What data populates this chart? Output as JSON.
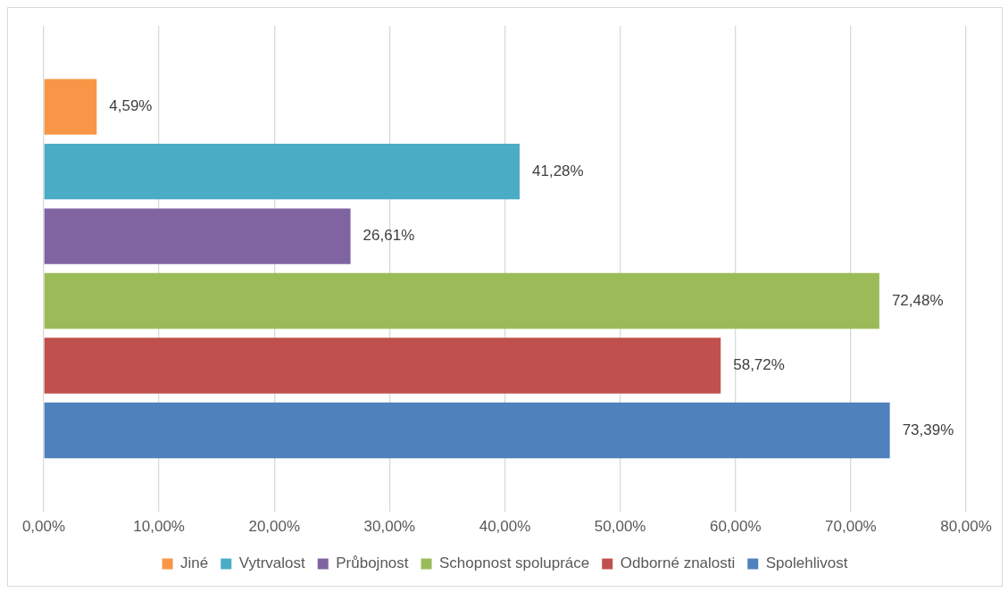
{
  "chart_data": {
    "type": "bar",
    "orientation": "horizontal",
    "categories": [
      null
    ],
    "series": [
      {
        "name": "Jiné",
        "color": "#f79646",
        "values": [
          4.59
        ],
        "value_labels": [
          "4,59%"
        ]
      },
      {
        "name": "Vytrvalost",
        "color": "#4bacc6",
        "values": [
          41.28
        ],
        "value_labels": [
          "41,28%"
        ]
      },
      {
        "name": "Průbojnost",
        "color": "#8064a2",
        "values": [
          26.61
        ],
        "value_labels": [
          "26,61%"
        ]
      },
      {
        "name": "Schopnost spolupráce",
        "color": "#9bbb59",
        "values": [
          72.48
        ],
        "value_labels": [
          "72,48%"
        ]
      },
      {
        "name": "Odborné znalosti",
        "color": "#c0504d",
        "values": [
          58.72
        ],
        "value_labels": [
          "58,72%"
        ]
      },
      {
        "name": "Spolehlivost",
        "color": "#4f81bd",
        "values": [
          73.39
        ],
        "value_labels": [
          "73,39%"
        ]
      }
    ],
    "xlim": [
      0,
      80
    ],
    "xticks": [
      {
        "value": 0,
        "label": "0,00%"
      },
      {
        "value": 10,
        "label": "10,00%"
      },
      {
        "value": 20,
        "label": "20,00%"
      },
      {
        "value": 30,
        "label": "30,00%"
      },
      {
        "value": 40,
        "label": "40,00%"
      },
      {
        "value": 50,
        "label": "50,00%"
      },
      {
        "value": 60,
        "label": "60,00%"
      },
      {
        "value": 70,
        "label": "70,00%"
      },
      {
        "value": 80,
        "label": "80,00%"
      }
    ],
    "grid": "x",
    "legend": "bottom"
  }
}
